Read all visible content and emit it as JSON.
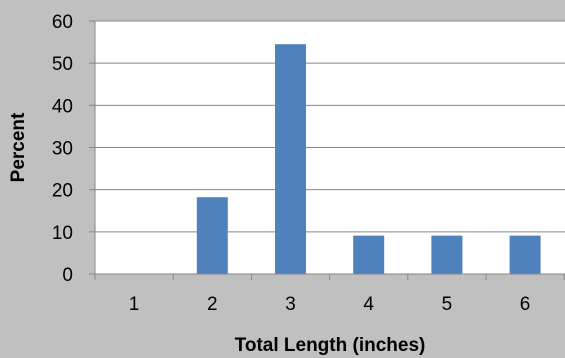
{
  "chart_data": {
    "type": "bar",
    "title": "",
    "xlabel": "Total Length (inches)",
    "ylabel": "Percent",
    "categories": [
      "1",
      "2",
      "3",
      "4",
      "5",
      "6"
    ],
    "values": [
      0,
      18.2,
      54.5,
      9.1,
      9.1,
      9.1
    ],
    "ylim": [
      0,
      60
    ],
    "yticks": [
      "0",
      "10",
      "20",
      "30",
      "40",
      "50",
      "60"
    ],
    "grid": true,
    "legend": "none",
    "colors": {
      "bar": "#4f81bd",
      "plot_background": "#ffffff",
      "figure_background": "#c0c0c0",
      "gridline": "#868686"
    }
  }
}
